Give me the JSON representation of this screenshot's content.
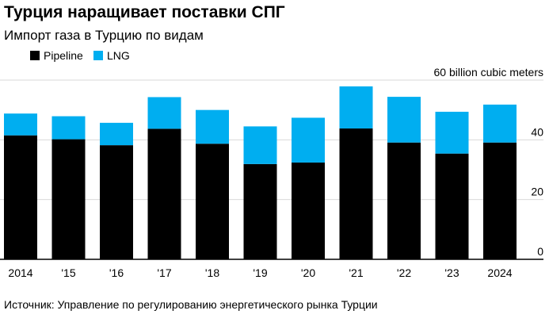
{
  "title": "Турция наращивает поставки СПГ",
  "subtitle": "Импорт газа в Турцию по видам",
  "source": "Источник: Управление по регулированию энергетического рынка Турции",
  "colors": {
    "pipeline": "#000000",
    "lng": "#00aef0",
    "grid": "#d9d9d9",
    "axis": "#000000"
  },
  "chart_data": {
    "type": "bar",
    "stacked": true,
    "categories": [
      "2014",
      "'15",
      "'16",
      "'17",
      "'18",
      "'19",
      "'20",
      "'21",
      "'22",
      "'23",
      "2024"
    ],
    "series": [
      {
        "name": "Pipeline",
        "values": [
          41.5,
          40.2,
          38.2,
          43.7,
          38.7,
          31.9,
          32.4,
          43.8,
          39.1,
          35.4,
          39.1
        ]
      },
      {
        "name": "LNG",
        "values": [
          7.3,
          7.7,
          7.5,
          10.6,
          11.3,
          12.6,
          15.0,
          14.1,
          15.3,
          14.0,
          12.7
        ]
      }
    ],
    "y_axis_label": "60 billion cubic meters",
    "yticks": [
      0,
      20,
      40,
      60
    ],
    "ylim": [
      0,
      60
    ],
    "legend_position": "top-left",
    "y_axis_side": "right",
    "grid": true
  }
}
